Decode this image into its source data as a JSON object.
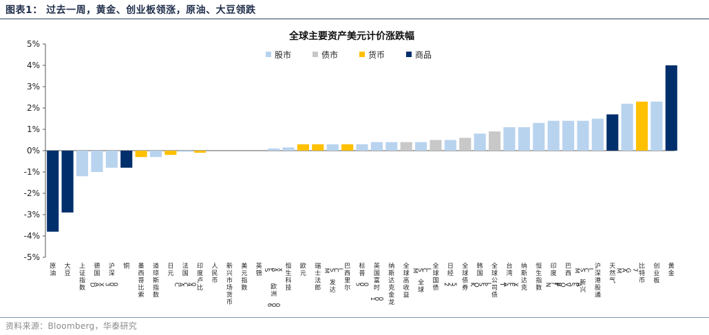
{
  "header": {
    "title": "图表1：  过去一周，黄金、创业板领涨，原油、大豆领跌"
  },
  "footer": {
    "source": "资料来源：Bloomberg，华泰研究"
  },
  "colors": {
    "stock": "#b8d3ee",
    "bond": "#c8c8c8",
    "currency": "#ffc000",
    "commodity": "#002f6c"
  },
  "chart_data": {
    "type": "bar",
    "title": "全球主要资产美元计价涨跌幅",
    "xlabel": "",
    "ylabel": "",
    "ylim": [
      -5,
      5
    ],
    "yticks": [
      "5%",
      "4%",
      "3%",
      "2%",
      "1%",
      "0%",
      "-1%",
      "-2%",
      "-3%",
      "-4%",
      "-5%"
    ],
    "ytick_values": [
      5,
      4,
      3,
      2,
      1,
      0,
      -1,
      -2,
      -3,
      -4,
      -5
    ],
    "grid": false,
    "legend_position": "top",
    "legend": [
      {
        "key": "stock",
        "label": "股市"
      },
      {
        "key": "bond",
        "label": "债市"
      },
      {
        "key": "currency",
        "label": "货币"
      },
      {
        "key": "commodity",
        "label": "商品"
      }
    ],
    "categories": [
      "原油",
      "大豆",
      "上证指数",
      "德国DAX",
      "沪深300",
      "铜",
      "墨西哥比索",
      "道琼斯指数",
      "日元",
      "法国CAC40",
      "印度卢比",
      "人民币",
      "新兴市场货币",
      "美元指数",
      "英镑",
      "Stoxx欧洲600",
      "恒生科技",
      "欧元",
      "瑞士法郎",
      "MSCI发达",
      "巴西里尔",
      "标普500",
      "英国富时100",
      "纳斯达克金龙",
      "全球高收益",
      "MSCI全球",
      "全球国债",
      "日经225",
      "全球债券",
      "韩国KOSPI",
      "全球公司债",
      "台湾TAIEX",
      "纳斯达克",
      "恒生指数",
      "印度Nifty",
      "巴西IBOVSPA",
      "MSCI新兴",
      "沪深港股通",
      "天然气",
      "MAG 7",
      "比特币",
      "创业板",
      "黄金"
    ],
    "values": [
      -3.8,
      -2.9,
      -1.2,
      -1.0,
      -0.8,
      -0.8,
      -0.3,
      -0.3,
      -0.2,
      -0.05,
      -0.1,
      0,
      0,
      0,
      0,
      0.1,
      0.15,
      0.3,
      0.3,
      0.3,
      0.3,
      0.3,
      0.4,
      0.4,
      0.4,
      0.4,
      0.5,
      0.5,
      0.6,
      0.8,
      0.9,
      1.1,
      1.1,
      1.3,
      1.4,
      1.4,
      1.4,
      1.5,
      1.7,
      2.2,
      2.3,
      2.3,
      4.0
    ],
    "groups": [
      "commodity",
      "commodity",
      "stock",
      "stock",
      "stock",
      "commodity",
      "currency",
      "stock",
      "currency",
      "stock",
      "currency",
      "currency",
      "currency",
      "currency",
      "currency",
      "stock",
      "stock",
      "currency",
      "currency",
      "stock",
      "currency",
      "stock",
      "stock",
      "stock",
      "bond",
      "stock",
      "bond",
      "stock",
      "bond",
      "stock",
      "bond",
      "stock",
      "stock",
      "stock",
      "stock",
      "stock",
      "stock",
      "stock",
      "commodity",
      "stock",
      "currency",
      "stock",
      "commodity"
    ]
  }
}
